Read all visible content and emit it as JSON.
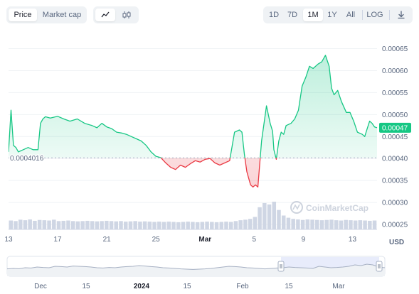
{
  "toolbar": {
    "view_tabs": [
      {
        "label": "Price",
        "active": true
      },
      {
        "label": "Market cap",
        "active": false
      }
    ],
    "chart_style_icons": [
      {
        "icon": "line-chart-icon",
        "active": true
      },
      {
        "icon": "candlestick-icon",
        "active": false
      }
    ],
    "ranges": [
      {
        "label": "1D",
        "active": false
      },
      {
        "label": "7D",
        "active": false
      },
      {
        "label": "1M",
        "active": true
      },
      {
        "label": "1Y",
        "active": false
      },
      {
        "label": "All",
        "active": false
      }
    ],
    "scale_label": "LOG",
    "download_icon": "download-icon"
  },
  "colors": {
    "up": "#16c784",
    "down": "#ea3943",
    "volume": "#cfd6e4",
    "grid": "#eff2f5",
    "navigator": "#a6b0c3",
    "navigator_window": "#e8ecfb"
  },
  "watermark": "CoinMarketCap",
  "currency": "USD",
  "chart_data": {
    "type": "line",
    "title": "",
    "ylabel": "",
    "ylim": [
      0.00025,
      0.00068
    ],
    "y_ticks": [
      "0.00025",
      "0.00030",
      "0.00035",
      "0.00040",
      "0.00045",
      "0.00050",
      "0.00055",
      "0.00060",
      "0.00065"
    ],
    "x_ticks": [
      "13",
      "17",
      "21",
      "25",
      "Mar",
      "5",
      "9",
      "13"
    ],
    "reference_label": "0.0004016",
    "reference_value": 0.0004016,
    "current_label": "0.00047",
    "current_value": 0.00047,
    "series": [
      {
        "x": [
          0,
          0.2,
          0.4,
          0.6,
          0.7,
          0.8,
          1.2,
          1.6,
          2.0,
          2.4,
          2.6,
          2.8,
          3.0,
          3.4,
          4.0,
          4.5,
          5.0,
          5.6,
          6.2,
          6.8,
          7.2,
          7.6,
          8.0,
          8.4,
          8.8,
          9.2,
          9.6,
          10.0,
          10.4,
          10.8,
          11.2,
          11.6,
          12.0,
          12.4,
          12.8,
          13.2,
          13.6,
          14.0,
          14.4,
          14.8,
          15.2,
          15.6,
          16.0,
          16.4,
          16.8,
          17.2,
          17.6,
          18.0,
          18.4,
          18.8,
          19.0,
          19.2,
          19.4,
          19.7,
          19.9,
          20.1,
          20.3,
          20.6,
          21.0,
          21.3,
          21.5,
          21.6,
          21.8,
          22.0,
          22.2,
          22.4,
          22.6,
          23.0,
          23.3,
          23.6,
          23.9,
          24.2,
          24.5,
          24.8,
          25.2,
          25.5,
          25.8,
          26.1,
          26.3,
          26.5,
          26.8,
          27.1,
          27.5,
          27.8,
          28.1,
          28.4,
          28.8,
          29.0,
          29.2,
          29.4,
          29.6,
          29.8,
          30.0
        ],
        "values": [
          0.000415,
          0.00051,
          0.00043,
          0.000425,
          0.00042,
          0.000415,
          0.00042,
          0.000425,
          0.00042,
          0.00042,
          0.00048,
          0.00049,
          0.000495,
          0.000492,
          0.000496,
          0.00049,
          0.000485,
          0.00049,
          0.00048,
          0.000475,
          0.00047,
          0.00048,
          0.000472,
          0.000468,
          0.00046,
          0.000458,
          0.000455,
          0.00045,
          0.000445,
          0.00044,
          0.00043,
          0.000415,
          0.000405,
          0.000402,
          0.00039,
          0.00038,
          0.000375,
          0.000385,
          0.00038,
          0.000388,
          0.000395,
          0.000392,
          0.000398,
          0.0004,
          0.00039,
          0.000385,
          0.00039,
          0.000395,
          0.00046,
          0.000465,
          0.00046,
          0.00041,
          0.00037,
          0.00034,
          0.000335,
          0.00034,
          0.000335,
          0.00044,
          0.00052,
          0.00048,
          0.000462,
          0.00042,
          0.000398,
          0.00044,
          0.00046,
          0.000455,
          0.000475,
          0.00048,
          0.00049,
          0.00051,
          0.000565,
          0.000585,
          0.00061,
          0.000605,
          0.000615,
          0.00062,
          0.000635,
          0.00061,
          0.00056,
          0.000545,
          0.000555,
          0.00053,
          0.000505,
          0.000505,
          0.000485,
          0.00046,
          0.000455,
          0.00045,
          0.000468,
          0.000485,
          0.00048,
          0.000472,
          0.00047
        ]
      }
    ],
    "volume": [
      0.32,
      0.3,
      0.35,
      0.33,
      0.36,
      0.31,
      0.34,
      0.33,
      0.32,
      0.35,
      0.3,
      0.31,
      0.32,
      0.3,
      0.29,
      0.3,
      0.31,
      0.3,
      0.29,
      0.3,
      0.31,
      0.3,
      0.29,
      0.3,
      0.28,
      0.29,
      0.3,
      0.28,
      0.29,
      0.28,
      0.27,
      0.28,
      0.27,
      0.28,
      0.27,
      0.26,
      0.27,
      0.28,
      0.27,
      0.26,
      0.27,
      0.28,
      0.27,
      0.26,
      0.27,
      0.28,
      0.27,
      0.3,
      0.33,
      0.35,
      0.38,
      0.45,
      0.8,
      0.95,
      0.9,
      1.0,
      0.7,
      0.5,
      0.42,
      0.38,
      0.36,
      0.34,
      0.36,
      0.35,
      0.34,
      0.33,
      0.34,
      0.35,
      0.33,
      0.32,
      0.34,
      0.33,
      0.32,
      0.33,
      0.32,
      0.31,
      0.32
    ],
    "navigator": {
      "x_ticks": [
        "Dec",
        "15",
        "2024",
        "15",
        "Feb",
        "15",
        "Mar"
      ],
      "values": [
        0.42,
        0.45,
        0.43,
        0.5,
        0.48,
        0.55,
        0.52,
        0.5,
        0.6,
        0.58,
        0.55,
        0.62,
        0.6,
        0.58,
        0.55,
        0.5,
        0.48,
        0.52,
        0.5,
        0.55,
        0.58,
        0.6,
        0.65,
        0.62,
        0.58,
        0.55,
        0.5,
        0.48,
        0.45,
        0.42,
        0.4,
        0.38,
        0.4,
        0.42,
        0.45,
        0.5,
        0.55,
        0.6,
        0.58,
        0.55,
        0.5,
        0.48,
        0.45,
        0.42,
        0.45,
        0.48,
        0.5,
        0.55,
        0.52,
        0.5,
        0.48,
        0.45,
        0.6,
        0.55,
        0.5,
        0.52,
        0.55,
        0.6,
        0.7,
        0.65,
        0.75,
        0.7,
        0.55,
        0.5
      ]
    }
  }
}
